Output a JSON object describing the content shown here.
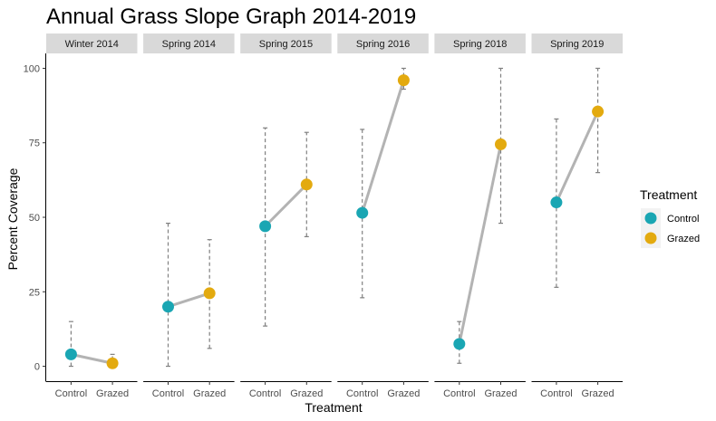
{
  "chart_data": {
    "type": "scatter",
    "title": "Annual Grass Slope Graph 2014-2019",
    "xlabel": "Treatment",
    "ylabel": "Percent Coverage",
    "ylim": [
      -5,
      105
    ],
    "yticks": [
      0,
      25,
      50,
      75,
      100
    ],
    "categories": [
      "Control",
      "Grazed"
    ],
    "legend": {
      "title": "Treatment",
      "placement": "right",
      "items": [
        {
          "label": "Control",
          "color": "#1aa6b3"
        },
        {
          "label": "Grazed",
          "color": "#e3aa0f"
        }
      ]
    },
    "line_color": "#b3b3b3",
    "errorbar_color": "#808080",
    "panels": [
      {
        "label": "Winter 2014",
        "control": {
          "mean": 4,
          "low": 0,
          "high": 15
        },
        "grazed": {
          "mean": 1,
          "low": 0,
          "high": 4
        }
      },
      {
        "label": "Spring 2014",
        "control": {
          "mean": 20,
          "low": 0,
          "high": 48
        },
        "grazed": {
          "mean": 24.5,
          "low": 6,
          "high": 42.5
        }
      },
      {
        "label": "Spring 2015",
        "control": {
          "mean": 47,
          "low": 13.5,
          "high": 80
        },
        "grazed": {
          "mean": 61,
          "low": 43.5,
          "high": 78.5
        }
      },
      {
        "label": "Spring 2016",
        "control": {
          "mean": 51.5,
          "low": 23,
          "high": 79.5
        },
        "grazed": {
          "mean": 96,
          "low": 93,
          "high": 100
        }
      },
      {
        "label": "Spring 2018",
        "control": {
          "mean": 7.5,
          "low": 1,
          "high": 15
        },
        "grazed": {
          "mean": 74.5,
          "low": 48,
          "high": 100
        }
      },
      {
        "label": "Spring 2019",
        "control": {
          "mean": 55,
          "low": 26.5,
          "high": 83
        },
        "grazed": {
          "mean": 85.5,
          "low": 65,
          "high": 100
        }
      }
    ]
  }
}
